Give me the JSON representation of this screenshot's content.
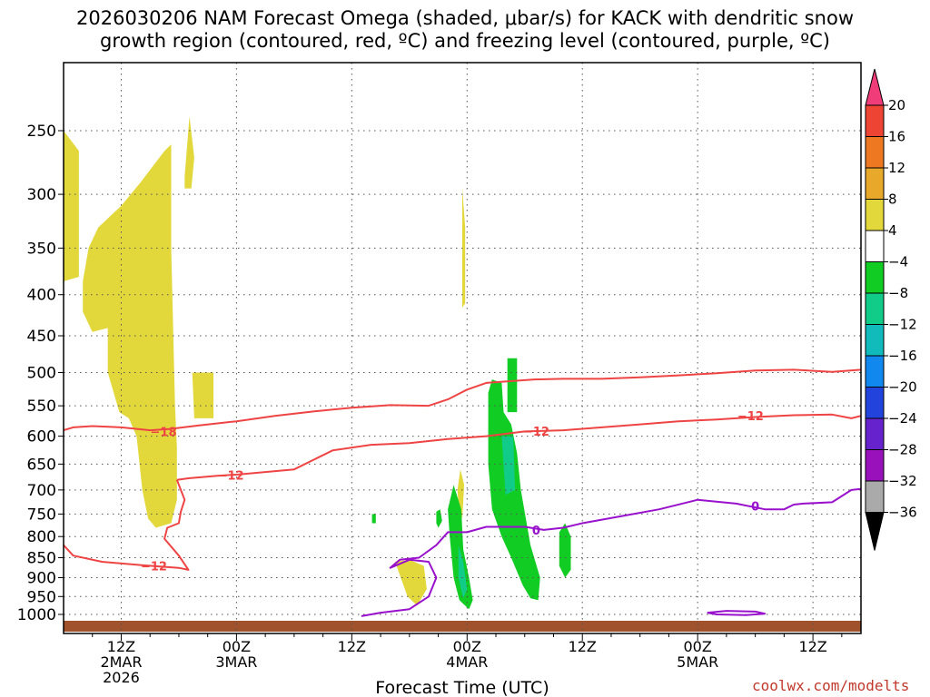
{
  "chart_data": {
    "type": "heatmap",
    "title_line1": "2026030206 NAM Forecast Omega (shaded, μbar/s) for KACK with dendritic snow",
    "title_line2": "growth region (contoured, red, ºC) and freezing level (contoured, purple, ºC)",
    "xlabel": "Forecast Time (UTC)",
    "credit": "coolwx.com/modelts",
    "y_scale": "log-pressure",
    "y_ticks": [
      250,
      300,
      350,
      400,
      450,
      500,
      550,
      600,
      650,
      700,
      750,
      800,
      850,
      900,
      950,
      1000
    ],
    "x_ticks": [
      {
        "h": 12,
        "l1": "12Z",
        "l2": "2MAR",
        "l3": "2026"
      },
      {
        "h": 24,
        "l1": "00Z",
        "l2": "3MAR",
        "l3": ""
      },
      {
        "h": 36,
        "l1": "12Z",
        "l2": "",
        "l3": ""
      },
      {
        "h": 48,
        "l1": "00Z",
        "l2": "4MAR",
        "l3": ""
      },
      {
        "h": 60,
        "l1": "12Z",
        "l2": "",
        "l3": ""
      },
      {
        "h": 72,
        "l1": "00Z",
        "l2": "5MAR",
        "l3": ""
      },
      {
        "h": 84,
        "l1": "12Z",
        "l2": "",
        "l3": ""
      }
    ],
    "colorbar": {
      "labels": [
        "20",
        "16",
        "12",
        "8",
        "4",
        "−4",
        "−8",
        "−12",
        "−16",
        "−20",
        "−24",
        "−28",
        "−32",
        "−36"
      ],
      "colors": [
        "#f03c78",
        "#ee4433",
        "#ee7722",
        "#e8a82a",
        "#e3d83b",
        "#ffffff",
        "#11cc22",
        "#11cc88",
        "#11bbbb",
        "#1188ee",
        "#2244dd",
        "#6622cc",
        "#9911bb",
        "#aaaaaa",
        "#000000"
      ]
    },
    "omega_regions": [
      {
        "color": "#e3d83b",
        "pts": [
          [
            6,
            250
          ],
          [
            7.6,
            265
          ],
          [
            7.6,
            380
          ],
          [
            6,
            385
          ]
        ]
      },
      {
        "color": "#e3d83b",
        "pts": [
          [
            8,
            385
          ],
          [
            8.6,
            350
          ],
          [
            9.6,
            330
          ],
          [
            12,
            310
          ],
          [
            14,
            290
          ],
          [
            16.5,
            265
          ],
          [
            17.2,
            260
          ],
          [
            17.2,
            350
          ],
          [
            17.6,
            550
          ],
          [
            17.8,
            620
          ],
          [
            17.8,
            720
          ],
          [
            17.2,
            770
          ],
          [
            15.6,
            780
          ],
          [
            14.8,
            760
          ],
          [
            14.2,
            700
          ],
          [
            13.6,
            600
          ],
          [
            12.8,
            570
          ],
          [
            11.8,
            560
          ],
          [
            10.6,
            500
          ],
          [
            10.6,
            440
          ],
          [
            9,
            445
          ],
          [
            8,
            420
          ]
        ]
      },
      {
        "color": "#e3d83b",
        "pts": [
          [
            18.6,
            285
          ],
          [
            19.1,
            240
          ],
          [
            19.6,
            270
          ],
          [
            19.3,
            295
          ],
          [
            18.6,
            295
          ]
        ]
      },
      {
        "color": "#e3d83b",
        "pts": [
          [
            19.4,
            500
          ],
          [
            21.6,
            500
          ],
          [
            21.6,
            570
          ],
          [
            19.6,
            570
          ]
        ]
      },
      {
        "color": "#e3d83b",
        "pts": [
          [
            47.5,
            295
          ],
          [
            47.8,
            330
          ],
          [
            47.8,
            410
          ],
          [
            47.5,
            415
          ]
        ]
      },
      {
        "color": "#e3d83b",
        "pts": [
          [
            47.3,
            660
          ],
          [
            47.7,
            690
          ],
          [
            47.5,
            760
          ],
          [
            47.1,
            730
          ],
          [
            47.0,
            700
          ]
        ]
      },
      {
        "color": "#e3d83b",
        "pts": [
          [
            40.5,
            860
          ],
          [
            42,
            855
          ],
          [
            43.5,
            870
          ],
          [
            43.8,
            930
          ],
          [
            42.8,
            975
          ],
          [
            41.8,
            950
          ]
        ]
      },
      {
        "color": "#11cc22",
        "pts": [
          [
            46.6,
            690
          ],
          [
            47.4,
            740
          ],
          [
            47.6,
            830
          ],
          [
            48.2,
            900
          ],
          [
            48.6,
            960
          ],
          [
            48.2,
            985
          ],
          [
            47.2,
            960
          ],
          [
            46.6,
            900
          ],
          [
            46.2,
            800
          ],
          [
            46.0,
            740
          ]
        ]
      },
      {
        "color": "#11cc88",
        "pts": [
          [
            47.1,
            820
          ],
          [
            47.6,
            860
          ],
          [
            48.0,
            930
          ],
          [
            47.6,
            955
          ],
          [
            47.1,
            900
          ]
        ]
      },
      {
        "color": "#11cc22",
        "pts": [
          [
            50.2,
            530
          ],
          [
            50.6,
            510
          ],
          [
            51.6,
            515
          ],
          [
            51.8,
            560
          ],
          [
            52.6,
            580
          ],
          [
            53.2,
            630
          ],
          [
            53.6,
            700
          ],
          [
            54.6,
            820
          ],
          [
            55.6,
            900
          ],
          [
            55.4,
            960
          ],
          [
            54.6,
            955
          ],
          [
            53.8,
            920
          ],
          [
            52.6,
            850
          ],
          [
            51.6,
            800
          ],
          [
            50.6,
            740
          ],
          [
            50.2,
            650
          ]
        ]
      },
      {
        "color": "#11cc22",
        "pts": [
          [
            52.2,
            480
          ],
          [
            53.2,
            480
          ],
          [
            53.2,
            560
          ],
          [
            52.2,
            560
          ]
        ]
      },
      {
        "color": "#11cc88",
        "pts": [
          [
            51.6,
            600
          ],
          [
            52.8,
            600
          ],
          [
            53.0,
            700
          ],
          [
            52.0,
            710
          ]
        ]
      },
      {
        "color": "#11cc22",
        "pts": [
          [
            57.6,
            790
          ],
          [
            58.2,
            770
          ],
          [
            58.8,
            800
          ],
          [
            58.8,
            880
          ],
          [
            58.2,
            900
          ],
          [
            57.6,
            870
          ]
        ]
      },
      {
        "color": "#11cc22",
        "pts": [
          [
            44.8,
            745
          ],
          [
            45.2,
            740
          ],
          [
            45.4,
            765
          ],
          [
            45.0,
            780
          ],
          [
            44.8,
            770
          ]
        ]
      },
      {
        "color": "#11cc22",
        "pts": [
          [
            38.1,
            750
          ],
          [
            38.5,
            750
          ],
          [
            38.5,
            770
          ],
          [
            38.1,
            770
          ]
        ]
      }
    ],
    "contours_red": [
      {
        "label": "−18",
        "label_at": [
          16.4,
          592
        ],
        "pts": [
          [
            6,
            590
          ],
          [
            7,
            585
          ],
          [
            9,
            583
          ],
          [
            12,
            585
          ],
          [
            15,
            590
          ],
          [
            17,
            588
          ],
          [
            20,
            582
          ],
          [
            24,
            575
          ],
          [
            28,
            566
          ],
          [
            32,
            559
          ],
          [
            36,
            553
          ],
          [
            40,
            549
          ],
          [
            44,
            550
          ],
          [
            46,
            540
          ],
          [
            48,
            525
          ],
          [
            50,
            515
          ],
          [
            53,
            512
          ],
          [
            55,
            510
          ],
          [
            58,
            509
          ],
          [
            62,
            509
          ],
          [
            66,
            507
          ],
          [
            70,
            504
          ],
          [
            74,
            501
          ],
          [
            78,
            497
          ],
          [
            82,
            496
          ],
          [
            86,
            499
          ],
          [
            89,
            496
          ]
        ]
      },
      {
        "label": "−12",
        "label_at": [
          55.2,
          591
        ],
        "pts": [
          [
            24,
            670
          ],
          [
            27,
            665
          ],
          [
            30,
            660
          ],
          [
            34,
            625
          ],
          [
            38,
            615
          ],
          [
            42,
            612
          ],
          [
            46,
            605
          ],
          [
            50,
            600
          ],
          [
            54,
            592
          ],
          [
            58,
            590
          ],
          [
            62,
            585
          ],
          [
            66,
            580
          ],
          [
            70,
            575
          ],
          [
            74,
            572
          ],
          [
            78,
            568
          ],
          [
            82,
            565
          ],
          [
            86,
            564
          ],
          [
            88,
            570
          ],
          [
            89,
            566
          ]
        ]
      },
      {
        "label": "−12",
        "label_at": [
          77.5,
          566
        ],
        "pts": []
      },
      {
        "label": "−12",
        "label_at": [
          23.4,
          671
        ],
        "pts": [
          [
            17.8,
            680
          ],
          [
            19,
            677
          ],
          [
            22,
            672
          ],
          [
            24,
            670
          ]
        ]
      },
      {
        "label": "−12",
        "label_at": [
          15.4,
          870
        ],
        "pts": [
          [
            6,
            820
          ],
          [
            7,
            845
          ],
          [
            10,
            860
          ],
          [
            14,
            868
          ],
          [
            18,
            875
          ],
          [
            19,
            880
          ],
          [
            18,
            845
          ],
          [
            16.5,
            805
          ],
          [
            16.8,
            780
          ],
          [
            18,
            770
          ],
          [
            18.2,
            745
          ],
          [
            18.6,
            720
          ],
          [
            17.8,
            680
          ]
        ]
      }
    ],
    "contours_purple": [
      {
        "label": "0",
        "label_at": [
          55.2,
          785
        ],
        "pts": [
          [
            37,
            1005
          ],
          [
            39,
            995
          ],
          [
            42,
            985
          ],
          [
            44,
            950
          ],
          [
            44.8,
            900
          ],
          [
            44,
            860
          ],
          [
            42,
            855
          ],
          [
            40,
            875
          ],
          [
            41,
            855
          ],
          [
            43,
            850
          ],
          [
            44.8,
            820
          ],
          [
            46,
            790
          ],
          [
            48,
            790
          ],
          [
            50,
            778
          ],
          [
            54,
            778
          ],
          [
            56,
            785
          ],
          [
            58,
            780
          ],
          [
            60,
            770
          ],
          [
            64,
            755
          ],
          [
            68,
            740
          ],
          [
            72,
            720
          ],
          [
            76,
            728
          ],
          [
            79,
            740
          ],
          [
            81,
            740
          ],
          [
            82,
            730
          ],
          [
            83,
            728
          ],
          [
            86,
            725
          ],
          [
            88,
            700
          ],
          [
            89,
            698
          ]
        ]
      },
      {
        "label": "0",
        "label_at": [
          78,
          733
        ],
        "pts": []
      },
      {
        "label": "",
        "label_at": null,
        "pts": [
          [
            73,
            995
          ],
          [
            75,
            990
          ],
          [
            78,
            992
          ],
          [
            79,
            998
          ],
          [
            77,
            1002
          ],
          [
            74,
            1000
          ],
          [
            73,
            995
          ]
        ]
      }
    ]
  }
}
